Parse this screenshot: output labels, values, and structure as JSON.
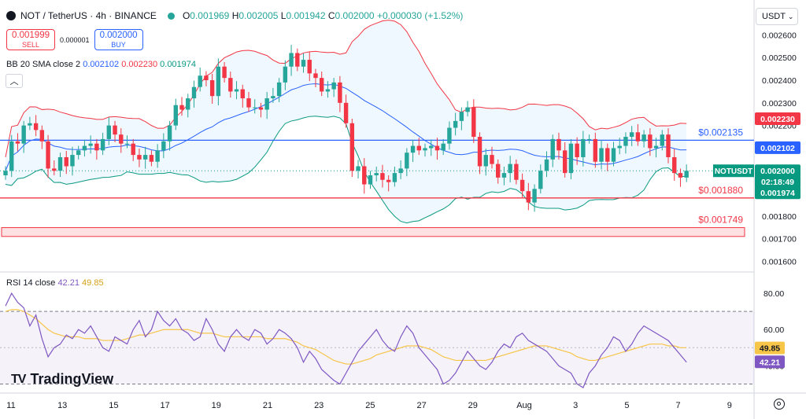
{
  "header": {
    "symbol": "NOT / TetherUS · 4h · BINANCE",
    "o_label": "O",
    "o": "0.001969",
    "h_label": "H",
    "h": "0.002005",
    "l_label": "L",
    "l": "0.001942",
    "c_label": "C",
    "c": "0.002000",
    "change": "+0.000030 (+1.52%)"
  },
  "trade": {
    "sell_price": "0.001999",
    "sell_label": "SELL",
    "spread": "0.000001",
    "buy_price": "0.002000",
    "buy_label": "BUY"
  },
  "bb_legend": {
    "label": "BB 20 SMA close 2",
    "basis": "0.002102",
    "upper": "0.002230",
    "lower": "0.001974"
  },
  "rsi_legend": {
    "label": "RSI 14 close",
    "rsi": "42.21",
    "ma": "49.85"
  },
  "currency": "USDT",
  "brand": "TradingView",
  "colors": {
    "up": "#26a69a",
    "down": "#f23645",
    "basis": "#2962ff",
    "upper": "#f23645",
    "lower": "#089981",
    "rsi": "#7e57c2",
    "rsi_ma": "#f7c548"
  },
  "chart_data": {
    "type": "candlestick",
    "price_axis": {
      "ticks": [
        "0.002600",
        "0.002500",
        "0.002400",
        "0.002300",
        "0.002200",
        "0.002100",
        "0.002000",
        "0.001900",
        "0.001800",
        "0.001700",
        "0.001600"
      ],
      "range": [
        0.00156,
        0.00265
      ]
    },
    "time_axis": {
      "ticks": [
        "11",
        "13",
        "15",
        "17",
        "19",
        "21",
        "23",
        "25",
        "27",
        "29",
        "Aug",
        "3",
        "5",
        "7",
        "9"
      ]
    },
    "levels": [
      {
        "label": "$0.002135",
        "value": 0.002135,
        "color": "#2962ff"
      },
      {
        "label": "$0.001880",
        "value": 0.00188,
        "color": "#f23645"
      },
      {
        "label": "$0.001749",
        "value": 0.001749,
        "zone": [
          0.00171,
          0.001749
        ],
        "color": "#f23645"
      }
    ],
    "price_labels": [
      {
        "label": "0.002230",
        "value": 0.00223,
        "color": "#f23645",
        "name": "bb-upper"
      },
      {
        "label": "0.002102",
        "value": 0.002102,
        "color": "#2962ff",
        "name": "bb-basis"
      },
      {
        "label": "NOTUSDT",
        "value": 0.002,
        "color": "#089981",
        "name": "symbol"
      },
      {
        "label": "0.002000",
        "value": 0.002,
        "color": "#089981",
        "name": "last-price"
      },
      {
        "label": "02:18:49",
        "value": 0.00196,
        "color": "#089981",
        "name": "countdown"
      },
      {
        "label": "0.001974",
        "value": 0.001974,
        "color": "#089981",
        "name": "bb-lower"
      }
    ],
    "close": [
      0.002,
      0.00213,
      0.00212,
      0.0022,
      0.00221,
      0.00218,
      0.00213,
      0.00201,
      0.002,
      0.00206,
      0.00202,
      0.00207,
      0.00209,
      0.00211,
      0.00212,
      0.00209,
      0.00214,
      0.0022,
      0.00216,
      0.00212,
      0.00212,
      0.00207,
      0.00205,
      0.00207,
      0.00204,
      0.00209,
      0.00213,
      0.0022,
      0.00229,
      0.00227,
      0.00232,
      0.00237,
      0.00242,
      0.0024,
      0.00233,
      0.00246,
      0.00241,
      0.00235,
      0.00236,
      0.00232,
      0.00228,
      0.00228,
      0.00227,
      0.00232,
      0.00233,
      0.00239,
      0.00246,
      0.00252,
      0.00246,
      0.00249,
      0.00243,
      0.00241,
      0.00235,
      0.00236,
      0.00239,
      0.0023,
      0.00221,
      0.002,
      0.00202,
      0.00194,
      0.00198,
      0.00199,
      0.00196,
      0.00195,
      0.00199,
      0.00201,
      0.00208,
      0.00211,
      0.00209,
      0.0021,
      0.00211,
      0.00209,
      0.00212,
      0.00219,
      0.00222,
      0.00226,
      0.00228,
      0.00215,
      0.00202,
      0.00207,
      0.00203,
      0.00197,
      0.00199,
      0.00203,
      0.00196,
      0.00191,
      0.00186,
      0.00192,
      0.002,
      0.00205,
      0.00214,
      0.00209,
      0.00199,
      0.00212,
      0.00206,
      0.00214,
      0.00214,
      0.00204,
      0.0021,
      0.00204,
      0.0021,
      0.00211,
      0.00215,
      0.00217,
      0.00213,
      0.00216,
      0.0021,
      0.00211,
      0.00216,
      0.00206,
      0.00199,
      0.00197,
      0.002
    ],
    "rsi_axis": {
      "ticks": [
        "80.00",
        "60.00",
        "40.00"
      ],
      "band": [
        30,
        70
      ],
      "range": [
        25,
        90
      ]
    },
    "rsi": [
      73,
      80,
      75,
      72,
      62,
      68,
      55,
      45,
      50,
      52,
      57,
      55,
      60,
      58,
      62,
      56,
      50,
      48,
      56,
      54,
      52,
      60,
      65,
      56,
      60,
      70,
      65,
      62,
      66,
      60,
      58,
      54,
      56,
      66,
      60,
      52,
      48,
      56,
      60,
      56,
      54,
      60,
      58,
      52,
      55,
      60,
      58,
      55,
      50,
      42,
      48,
      44,
      38,
      35,
      32,
      30,
      36,
      42,
      48,
      52,
      56,
      60,
      54,
      50,
      48,
      56,
      62,
      58,
      50,
      46,
      42,
      38,
      30,
      32,
      36,
      42,
      48,
      44,
      40,
      38,
      42,
      48,
      52,
      50,
      56,
      58,
      54,
      52,
      50,
      48,
      44,
      40,
      38,
      36,
      30,
      28,
      36,
      40,
      46,
      50,
      56,
      54,
      48,
      52,
      58,
      62,
      60,
      58,
      56,
      54,
      50,
      46,
      42
    ],
    "rsi_ma": [
      70,
      71,
      71,
      70,
      68,
      66,
      63,
      60,
      58,
      57,
      56,
      56,
      56,
      55,
      55,
      55,
      54,
      54,
      54,
      54,
      55,
      56,
      57,
      57,
      58,
      59,
      60,
      60,
      60,
      60,
      60,
      59,
      58,
      58,
      58,
      57,
      56,
      56,
      56,
      56,
      56,
      56,
      56,
      55,
      55,
      55,
      55,
      54,
      53,
      51,
      50,
      49,
      47,
      45,
      43,
      42,
      41,
      41,
      42,
      43,
      44,
      46,
      47,
      48,
      49,
      50,
      51,
      51,
      51,
      50,
      49,
      47,
      45,
      44,
      43,
      43,
      43,
      43,
      43,
      43,
      44,
      45,
      46,
      47,
      48,
      49,
      50,
      51,
      51,
      51,
      50,
      49,
      48,
      47,
      45,
      44,
      43,
      43,
      44,
      45,
      46,
      47,
      48,
      49,
      50,
      51,
      52,
      52,
      52,
      51,
      51,
      50,
      50
    ]
  }
}
